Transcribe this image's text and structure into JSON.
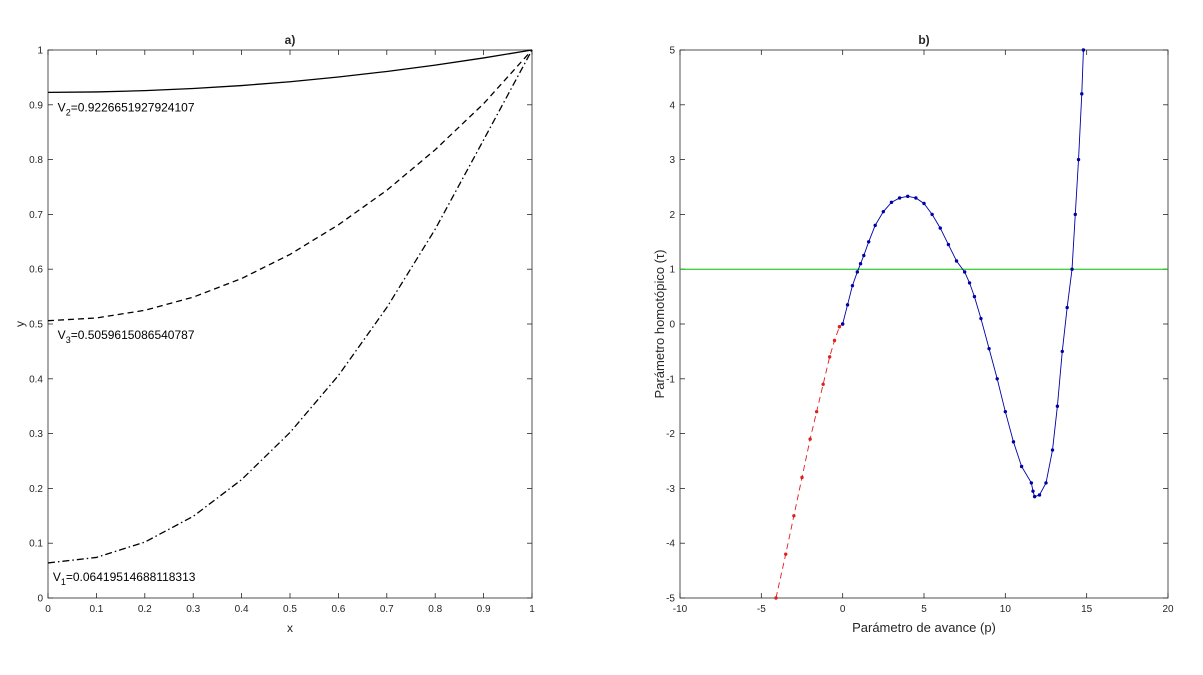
{
  "colors": {
    "curve": "#000000",
    "blue": "#0000a8",
    "red": "#e02020",
    "green": "#00c000",
    "axis": "#262626"
  },
  "chart_data": [
    {
      "type": "line",
      "title": "a)",
      "xlabel": "x",
      "ylabel": "y",
      "xlim": [
        0,
        1
      ],
      "ylim": [
        0,
        1
      ],
      "xticks": [
        "0",
        "0.1",
        "0.2",
        "0.3",
        "0.4",
        "0.5",
        "0.6",
        "0.7",
        "0.8",
        "0.9",
        "1"
      ],
      "yticks": [
        "0",
        "0.1",
        "0.2",
        "0.3",
        "0.4",
        "0.5",
        "0.6",
        "0.7",
        "0.8",
        "0.9",
        "1"
      ],
      "grid": false,
      "series": [
        {
          "style": "solid",
          "color": "#000000",
          "x": [
            0,
            0.1,
            0.2,
            0.3,
            0.4,
            0.5,
            0.6,
            0.7,
            0.8,
            0.9,
            1
          ],
          "y": [
            0.9227,
            0.9235,
            0.9258,
            0.9297,
            0.9351,
            0.9421,
            0.9507,
            0.9608,
            0.9724,
            0.9855,
            1.0
          ]
        },
        {
          "style": "dashed",
          "color": "#000000",
          "x": [
            0,
            0.1,
            0.2,
            0.3,
            0.4,
            0.5,
            0.6,
            0.7,
            0.8,
            0.9,
            1
          ],
          "y": [
            0.506,
            0.511,
            0.525,
            0.549,
            0.583,
            0.627,
            0.681,
            0.744,
            0.818,
            0.902,
            1.0
          ]
        },
        {
          "style": "dashdot",
          "color": "#000000",
          "x": [
            0,
            0.1,
            0.2,
            0.3,
            0.4,
            0.5,
            0.6,
            0.7,
            0.8,
            0.9,
            1
          ],
          "y": [
            0.064,
            0.074,
            0.102,
            0.149,
            0.216,
            0.302,
            0.406,
            0.53,
            0.673,
            0.836,
            1.0
          ]
        }
      ],
      "annotations": [
        {
          "base": "V",
          "sub": "2",
          "rest": "=0.9226651927924107",
          "x": 0.02,
          "y": 0.895
        },
        {
          "base": "V",
          "sub": "3",
          "rest": "=0.5059615086540787",
          "x": 0.02,
          "y": 0.48
        },
        {
          "base": "V",
          "sub": "1",
          "rest": "=0.06419514688118313",
          "x": 0.01,
          "y": 0.038
        }
      ]
    },
    {
      "type": "line",
      "title": "b)",
      "xlabel": "Parámetro de avance (p)",
      "ylabel": "Parámetro homotópico (τ)",
      "xlim": [
        -10,
        20
      ],
      "ylim": [
        -5,
        5
      ],
      "xticks": [
        "-10",
        "-5",
        "0",
        "5",
        "10",
        "15",
        "20"
      ],
      "yticks": [
        "-5",
        "-4",
        "-3",
        "-2",
        "-1",
        "0",
        "1",
        "2",
        "3",
        "4",
        "5"
      ],
      "grid": false,
      "hline": {
        "y": 1,
        "color": "#00c000"
      },
      "series": [
        {
          "style": "dashed",
          "color": "#e02020",
          "marker": "dot",
          "x": [
            -4.1,
            -3.5,
            -3.0,
            -2.5,
            -2.0,
            -1.6,
            -1.2,
            -0.8,
            -0.5,
            -0.2,
            0.0
          ],
          "y": [
            -5.0,
            -4.2,
            -3.5,
            -2.8,
            -2.1,
            -1.6,
            -1.1,
            -0.6,
            -0.3,
            -0.05,
            0.0
          ]
        },
        {
          "style": "solid",
          "color": "#0000a8",
          "marker": "dot",
          "x": [
            0.0,
            0.3,
            0.6,
            0.9,
            1.1,
            1.3,
            1.6,
            2.0,
            2.5,
            3.0,
            3.5,
            4.0,
            4.5,
            5.0,
            5.5,
            6.0,
            6.5,
            7.0,
            7.5,
            7.8,
            8.1,
            8.5,
            9.0,
            9.5,
            10.0,
            10.5,
            11.0,
            11.6,
            11.7,
            11.8,
            12.1,
            12.5,
            12.9,
            13.2,
            13.5,
            13.8,
            14.1,
            14.3,
            14.5,
            14.7,
            14.8
          ],
          "y": [
            0.0,
            0.35,
            0.7,
            0.95,
            1.1,
            1.25,
            1.5,
            1.8,
            2.05,
            2.22,
            2.3,
            2.33,
            2.3,
            2.2,
            2.0,
            1.75,
            1.45,
            1.15,
            0.95,
            0.75,
            0.5,
            0.1,
            -0.45,
            -1.0,
            -1.6,
            -2.15,
            -2.6,
            -2.9,
            -3.05,
            -3.15,
            -3.12,
            -2.9,
            -2.3,
            -1.5,
            -0.5,
            0.3,
            1.0,
            2.0,
            3.0,
            4.2,
            5.0
          ]
        }
      ]
    }
  ]
}
